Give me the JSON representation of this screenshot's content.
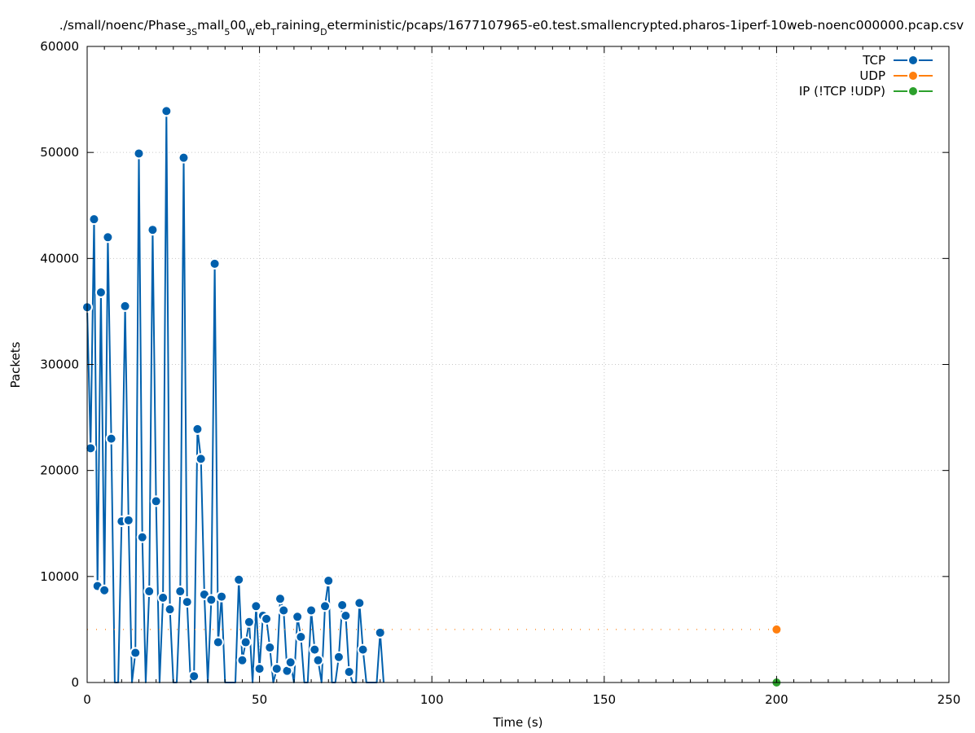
{
  "chart_data": {
    "type": "line",
    "title": "./small/noenc/Phase_3Small_500_Web_Training_Deterministic/pcaps/1677107965-e0.test.smallencrypted.pharos-1iperf-10web-noenc000000.pcap.csv",
    "title_parts": [
      {
        "t": "./small/noenc/Phase"
      },
      {
        "t": "3S",
        "sub": true
      },
      {
        "t": "mall"
      },
      {
        "t": "5",
        "sub": true
      },
      {
        "t": "00"
      },
      {
        "t": "W",
        "sub": true
      },
      {
        "t": "eb"
      },
      {
        "t": "T",
        "sub": true
      },
      {
        "t": "raining"
      },
      {
        "t": "D",
        "sub": true
      },
      {
        "t": "eterministic/pcaps/1677107965-e0.test.smallencrypted.pharos-1iperf-10web-noenc000000.pcap.csv"
      }
    ],
    "xlabel": "Time (s)",
    "ylabel": "Packets",
    "xlim": [
      0,
      250
    ],
    "ylim": [
      0,
      60000
    ],
    "xticks": [
      0,
      50,
      100,
      150,
      200,
      250
    ],
    "yticks": [
      0,
      10000,
      20000,
      30000,
      40000,
      50000,
      60000
    ],
    "grid": true,
    "legend_position": "top-right",
    "series": [
      {
        "name": "TCP",
        "color": "#0060ad",
        "x": [
          0,
          1,
          2,
          3,
          4,
          5,
          6,
          7,
          8,
          9,
          10,
          11,
          12,
          13,
          14,
          15,
          16,
          17,
          18,
          19,
          20,
          21,
          22,
          23,
          24,
          25,
          26,
          27,
          28,
          29,
          30,
          31,
          32,
          33,
          34,
          35,
          36,
          37,
          38,
          39,
          40,
          41,
          42,
          43,
          44,
          45,
          46,
          47,
          48,
          49,
          50,
          51,
          52,
          53,
          54,
          55,
          56,
          57,
          58,
          59,
          60,
          61,
          62,
          63,
          64,
          65,
          66,
          67,
          68,
          69,
          70,
          71,
          72,
          73,
          74,
          75,
          76,
          77,
          78,
          79,
          80,
          81,
          82,
          83,
          84,
          85,
          86
        ],
        "y": [
          35400,
          22100,
          43700,
          9100,
          36800,
          8700,
          42000,
          23000,
          0,
          0,
          15200,
          35500,
          15300,
          0,
          2800,
          49900,
          13700,
          0,
          8600,
          42700,
          17100,
          0,
          8000,
          53900,
          6900,
          0,
          0,
          8600,
          49500,
          7600,
          0,
          600,
          23900,
          21100,
          8300,
          0,
          7800,
          39500,
          3800,
          8100,
          0,
          0,
          0,
          0,
          9700,
          2100,
          3800,
          5700,
          0,
          7200,
          1300,
          6300,
          6000,
          3300,
          0,
          1300,
          7900,
          6800,
          1100,
          1900,
          0,
          6200,
          4300,
          0,
          0,
          6800,
          3100,
          2100,
          0,
          7200,
          9600,
          0,
          0,
          2400,
          7300,
          6300,
          1000,
          0,
          0,
          7500,
          3100,
          0,
          0,
          0,
          0,
          4700,
          0
        ]
      },
      {
        "name": "UDP",
        "color": "#ff7f0e",
        "x": [
          0,
          200
        ],
        "y": [
          5000,
          5000
        ]
      },
      {
        "name": "IP (!TCP  !UDP)",
        "color": "#2ca02c",
        "x": [
          200
        ],
        "y": [
          0
        ]
      }
    ]
  }
}
